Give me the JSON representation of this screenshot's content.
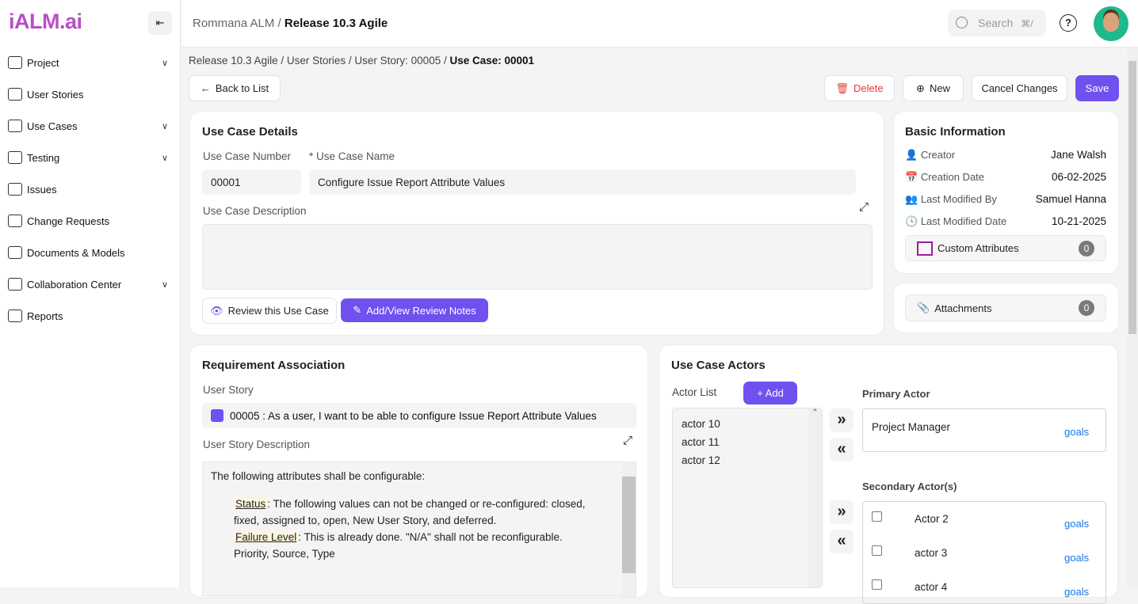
{
  "brand": {
    "logo": "iALM.ai",
    "accent": "#7050ef",
    "logo_color": "#b84fc6"
  },
  "sidebar": {
    "items": [
      {
        "label": "Project",
        "icon": "folder-icon",
        "chevron": true
      },
      {
        "label": "User Stories",
        "icon": "file-edit-icon",
        "chevron": false
      },
      {
        "label": "Use Cases",
        "icon": "document-icon",
        "chevron": true
      },
      {
        "label": "Testing",
        "icon": "gear-check-icon",
        "chevron": true
      },
      {
        "label": "Issues",
        "icon": "issue-doc-icon",
        "chevron": false
      },
      {
        "label": "Change Requests",
        "icon": "refresh-icon",
        "chevron": false
      },
      {
        "label": "Documents & Models",
        "icon": "doc-model-icon",
        "chevron": false
      },
      {
        "label": "Collaboration Center",
        "icon": "collaboration-icon",
        "chevron": true
      },
      {
        "label": "Reports",
        "icon": "chart-icon",
        "chevron": false
      }
    ]
  },
  "header": {
    "project": "Rommana ALM",
    "sep": "/",
    "release": "Release 10.3 Agile",
    "search_placeholder": "Search",
    "search_shortcut": "⌘/",
    "help": "?"
  },
  "breadcrumb": [
    "Release 10.3 Agile",
    "User Stories",
    "User Story: 00005",
    "Use Case: 00001"
  ],
  "toolbar": {
    "back": "Back to List",
    "delete": "Delete",
    "new": "New",
    "cancel": "Cancel Changes",
    "save": "Save"
  },
  "details": {
    "title": "Use Case Details",
    "number_label": "Use Case Number",
    "number": "00001",
    "name_label": "* Use Case Name",
    "name": "Configure Issue Report Attribute Values",
    "desc_label": "Use Case Description",
    "desc": "",
    "review": "Review this Use Case",
    "notes": "Add/View Review Notes"
  },
  "basic": {
    "title": "Basic Information",
    "rows": [
      {
        "label": "Creator",
        "value": "Jane Walsh"
      },
      {
        "label": "Creation Date",
        "value": "06-02-2025"
      },
      {
        "label": "Last Modified By",
        "value": "Samuel Hanna"
      },
      {
        "label": "Last Modified Date",
        "value": "10-21-2025"
      }
    ],
    "custom_attributes": "Custom Attributes",
    "custom_count": "0",
    "attachments": "Attachments",
    "attachments_count": "0"
  },
  "requirement": {
    "title": "Requirement Association",
    "story_label": "User Story",
    "story": "00005 : As a user, I want to be able to configure Issue Report Attribute Values",
    "desc_label": "User Story Description",
    "desc_intro": "The following attributes shall be configurable:",
    "status_term": "Status",
    "status_text": ": The following values can not be changed or re-configured: closed,",
    "status_text2": "fixed, assigned to, open, New User Story, and deferred.",
    "failure_term": "Failure Level",
    "failure_text": ": This is already done. \"N/A\" shall not be reconfigurable.",
    "other": "Priority, Source, Type"
  },
  "actors": {
    "title": "Use Case Actors",
    "list_label": "Actor List",
    "add": "+ Add",
    "list": [
      "actor 10",
      "actor 11",
      "actor 12"
    ],
    "primary_label": "Primary Actor",
    "primary": "Project Manager",
    "goals": "goals",
    "secondary_label": "Secondary Actor(s)",
    "secondary": [
      "Actor 2",
      "actor 3",
      "actor 4"
    ]
  }
}
